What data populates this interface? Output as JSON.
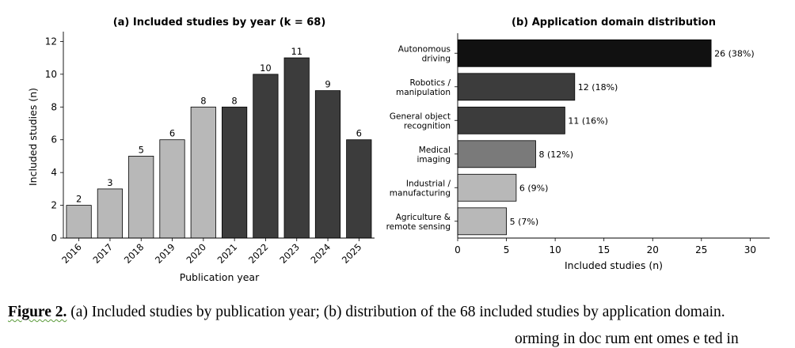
{
  "chart_data": [
    {
      "type": "bar",
      "title": "(a) Included studies by year (k = 68)",
      "xlabel": "Publication year",
      "ylabel": "Included studies (n)",
      "categories": [
        "2016",
        "2017",
        "2018",
        "2019",
        "2020",
        "2021",
        "2022",
        "2023",
        "2024",
        "2025"
      ],
      "values": [
        2,
        3,
        5,
        6,
        8,
        8,
        10,
        11,
        9,
        6
      ],
      "bar_colors": [
        "#b8b8b8",
        "#b8b8b8",
        "#b8b8b8",
        "#b8b8b8",
        "#b8b8b8",
        "#3c3c3c",
        "#3c3c3c",
        "#3c3c3c",
        "#3c3c3c",
        "#3c3c3c"
      ],
      "ylim": [
        0,
        12.6
      ],
      "yticks": [
        "0",
        "2",
        "4",
        "6",
        "8",
        "10",
        "12"
      ],
      "grid": false
    },
    {
      "type": "bar",
      "orientation": "horizontal",
      "title": "(b) Application domain distribution",
      "xlabel": "Included studies (n)",
      "ylabel": "",
      "categories": [
        [
          "Autonomous",
          "driving"
        ],
        [
          "Robotics /",
          "manipulation"
        ],
        [
          "General object",
          "recognition"
        ],
        [
          "Medical",
          "imaging"
        ],
        [
          "Industrial /",
          "manufacturing"
        ],
        [
          "Agriculture &",
          "remote sensing"
        ]
      ],
      "values": [
        26,
        12,
        11,
        8,
        6,
        5
      ],
      "value_labels": [
        "26 (38%)",
        "12 (18%)",
        "11 (16%)",
        "8 (12%)",
        "6 (9%)",
        "5 (7%)"
      ],
      "bar_colors": [
        "#111111",
        "#3c3c3c",
        "#3c3c3c",
        "#7a7a7a",
        "#b8b8b8",
        "#b8b8b8"
      ],
      "xlim": [
        0,
        32
      ],
      "xticks": [
        "0",
        "5",
        "10",
        "15",
        "20",
        "25",
        "30"
      ],
      "grid": false
    }
  ],
  "caption": {
    "lead": "Figure 2.",
    "text": " (a) Included studies by publication year; (b) distribution of the 68 included studies by application domain."
  },
  "overflow_text": "orming in doc rum ent omes e ted in"
}
